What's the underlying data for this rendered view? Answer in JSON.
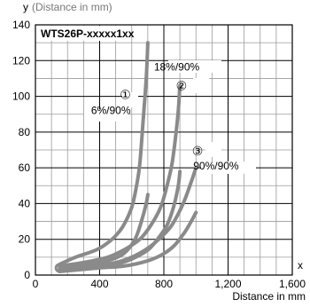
{
  "ylabel_head": "y",
  "ylabel_tail": "(Distance in mm)",
  "xlabel_head": "x",
  "xlabel_tail": "Distance in mm",
  "colors": {
    "grid": "#9a9a9a",
    "major_grid": "#000000",
    "curve": "#8a8a8a",
    "axis": "#000000"
  },
  "chart_data": {
    "type": "line",
    "title": "WTS26P-xxxxx1xx",
    "xlim": [
      0,
      1600
    ],
    "ylim": [
      0,
      140
    ],
    "x_ticks": [
      0,
      400,
      800,
      1200,
      1600
    ],
    "x_tick_labels": [
      "0",
      "400",
      "800",
      "1,200",
      "1,600"
    ],
    "y_ticks": [
      0,
      20,
      40,
      60,
      80,
      100,
      120,
      140
    ],
    "y_tick_labels": [
      "0",
      "20",
      "40",
      "60",
      "80",
      "100",
      "120",
      "140"
    ],
    "grid": true,
    "series": [
      {
        "marker": "①",
        "name": "6%/90%",
        "upper": [
          [
            150,
            6
          ],
          [
            250,
            10
          ],
          [
            350,
            13
          ],
          [
            400,
            15
          ],
          [
            450,
            18
          ],
          [
            500,
            22
          ],
          [
            550,
            28
          ],
          [
            600,
            38
          ],
          [
            630,
            50
          ],
          [
            650,
            62
          ],
          [
            670,
            85
          ],
          [
            690,
            110
          ],
          [
            700,
            130
          ]
        ],
        "lower": [
          [
            150,
            3
          ],
          [
            250,
            5
          ],
          [
            350,
            6
          ],
          [
            450,
            8
          ],
          [
            550,
            12
          ],
          [
            620,
            20
          ],
          [
            660,
            30
          ],
          [
            690,
            40
          ],
          [
            700,
            45
          ]
        ]
      },
      {
        "marker": "②",
        "name": "18%/90%",
        "upper": [
          [
            150,
            5
          ],
          [
            300,
            7
          ],
          [
            450,
            10
          ],
          [
            550,
            14
          ],
          [
            650,
            20
          ],
          [
            720,
            28
          ],
          [
            780,
            38
          ],
          [
            820,
            50
          ],
          [
            850,
            62
          ],
          [
            870,
            75
          ],
          [
            890,
            92
          ],
          [
            900,
            106
          ]
        ],
        "lower": [
          [
            150,
            3
          ],
          [
            350,
            4
          ],
          [
            500,
            6
          ],
          [
            600,
            9
          ],
          [
            700,
            14
          ],
          [
            760,
            20
          ],
          [
            820,
            28
          ],
          [
            860,
            38
          ],
          [
            890,
            50
          ],
          [
            900,
            58
          ]
        ]
      },
      {
        "marker": "③",
        "name": "90%/90%",
        "upper": [
          [
            150,
            4
          ],
          [
            350,
            5
          ],
          [
            500,
            7
          ],
          [
            600,
            10
          ],
          [
            700,
            15
          ],
          [
            780,
            21
          ],
          [
            850,
            28
          ],
          [
            920,
            40
          ],
          [
            970,
            52
          ],
          [
            1000,
            60
          ]
        ],
        "lower": [
          [
            150,
            2
          ],
          [
            400,
            4
          ],
          [
            550,
            5
          ],
          [
            700,
            8
          ],
          [
            800,
            12
          ],
          [
            870,
            17
          ],
          [
            930,
            24
          ],
          [
            970,
            30
          ],
          [
            1000,
            35
          ]
        ]
      }
    ]
  }
}
